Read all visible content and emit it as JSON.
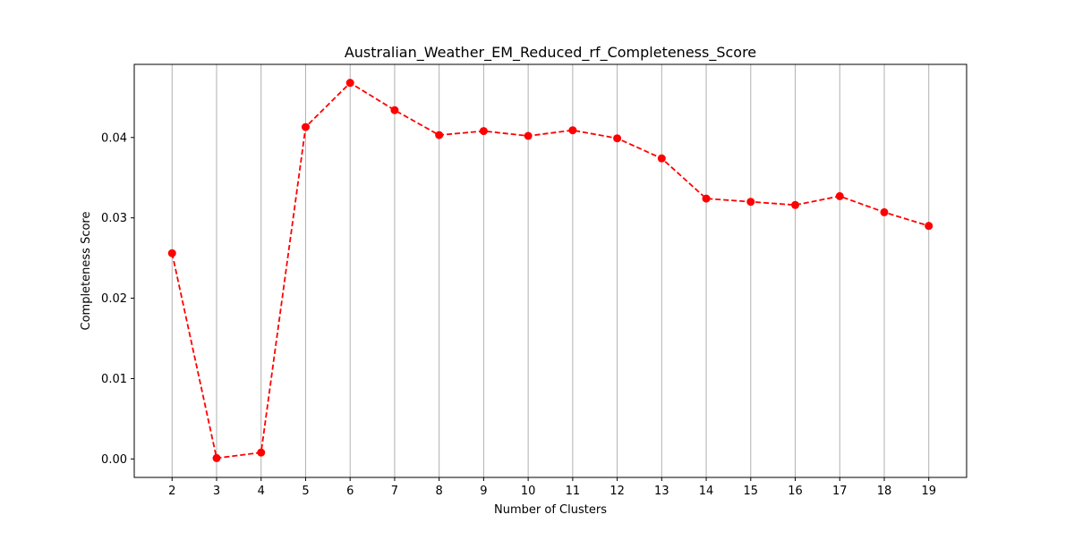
{
  "chart_data": {
    "type": "line",
    "title": "Australian_Weather_EM_Reduced_rf_Completeness_Score",
    "xlabel": "Number of Clusters",
    "ylabel": "Completeness Score",
    "x": [
      2,
      3,
      4,
      5,
      6,
      7,
      8,
      9,
      10,
      11,
      12,
      13,
      14,
      15,
      16,
      17,
      18,
      19
    ],
    "series": [
      {
        "values": [
          0.0256,
          0.0001,
          0.0008,
          0.0413,
          0.0468,
          0.0434,
          0.0403,
          0.0408,
          0.0402,
          0.0409,
          0.0399,
          0.0374,
          0.0324,
          0.032,
          0.0316,
          0.0327,
          0.0307,
          0.029
        ],
        "color": "#ff0000",
        "line_style": "dashed",
        "marker": "circle"
      }
    ],
    "xlim": [
      1.15,
      19.85
    ],
    "ylim": [
      -0.0023,
      0.0491
    ],
    "yticks": [
      "0.00",
      "0.01",
      "0.02",
      "0.03",
      "0.04"
    ],
    "xticks": [
      "2",
      "3",
      "4",
      "5",
      "6",
      "7",
      "8",
      "9",
      "10",
      "11",
      "12",
      "13",
      "14",
      "15",
      "16",
      "17",
      "18",
      "19"
    ],
    "grid": "vertical",
    "legend": "none"
  }
}
